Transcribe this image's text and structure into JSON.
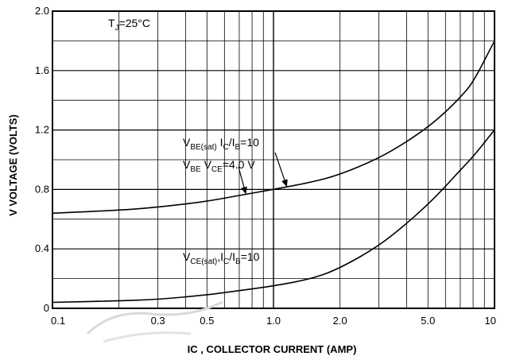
{
  "chart_data": {
    "type": "line",
    "title": "",
    "xlabel": "IC , COLLECTOR CURRENT (AMP)",
    "ylabel": "V VOLTAGE (VOLTS)",
    "x_scale": "log",
    "xlim": [
      0.1,
      10
    ],
    "ylim": [
      0,
      2.0
    ],
    "grid": true,
    "x_ticks": [
      {
        "value": 0.1,
        "label": "0.1"
      },
      {
        "value": 0.3,
        "label": "0.3"
      },
      {
        "value": 0.5,
        "label": "0.5"
      },
      {
        "value": 1.0,
        "label": "1.0"
      },
      {
        "value": 2.0,
        "label": "2.0"
      },
      {
        "value": 5.0,
        "label": "5.0"
      },
      {
        "value": 10,
        "label": "10"
      }
    ],
    "y_ticks": [
      {
        "value": 0,
        "label": "0"
      },
      {
        "value": 0.4,
        "label": "0.4"
      },
      {
        "value": 0.8,
        "label": "0.8"
      },
      {
        "value": 1.2,
        "label": "1.2"
      },
      {
        "value": 1.6,
        "label": "1.6"
      },
      {
        "value": 2.0,
        "label": "2.0"
      }
    ],
    "series": [
      {
        "x": [
          0.1,
          0.2,
          0.3,
          0.5,
          0.7,
          1.0,
          1.5,
          2.0,
          3.0,
          4.0,
          5.0,
          6.0,
          7.0,
          8.0,
          10.0
        ],
        "y": [
          0.64,
          0.66,
          0.68,
          0.72,
          0.76,
          0.8,
          0.85,
          0.9,
          1.01,
          1.12,
          1.22,
          1.32,
          1.42,
          1.52,
          1.8
        ]
      },
      {
        "x": [
          0.1,
          0.2,
          0.3,
          0.5,
          0.7,
          1.0,
          1.5,
          2.0,
          3.0,
          4.0,
          5.0,
          6.0,
          7.0,
          8.0,
          10.0
        ],
        "y": [
          0.04,
          0.05,
          0.06,
          0.09,
          0.12,
          0.15,
          0.2,
          0.27,
          0.42,
          0.57,
          0.7,
          0.82,
          0.93,
          1.02,
          1.2
        ]
      }
    ],
    "annotations": {
      "temp": {
        "main": "T",
        "sub": "J",
        "rest": "=25°C"
      },
      "vbe_sat": {
        "parts": [
          [
            "V",
            ""
          ],
          [
            "BE(sat)",
            "sub"
          ],
          [
            " I",
            ""
          ],
          [
            "C",
            "sub"
          ],
          [
            "/I",
            ""
          ],
          [
            "B",
            "sub"
          ],
          [
            "=10",
            ""
          ]
        ]
      },
      "vbe": {
        "parts": [
          [
            "V",
            ""
          ],
          [
            "BE",
            "sub"
          ],
          [
            " V",
            ""
          ],
          [
            "CE",
            "sub"
          ],
          [
            "=4.0 V",
            ""
          ]
        ]
      },
      "vce_sat": {
        "parts": [
          [
            "V",
            ""
          ],
          [
            "CE(sat)",
            "sub"
          ],
          [
            ",I",
            ""
          ],
          [
            "C",
            "sub"
          ],
          [
            "/I",
            ""
          ],
          [
            "B",
            "sub"
          ],
          [
            "=10",
            ""
          ]
        ]
      }
    }
  }
}
